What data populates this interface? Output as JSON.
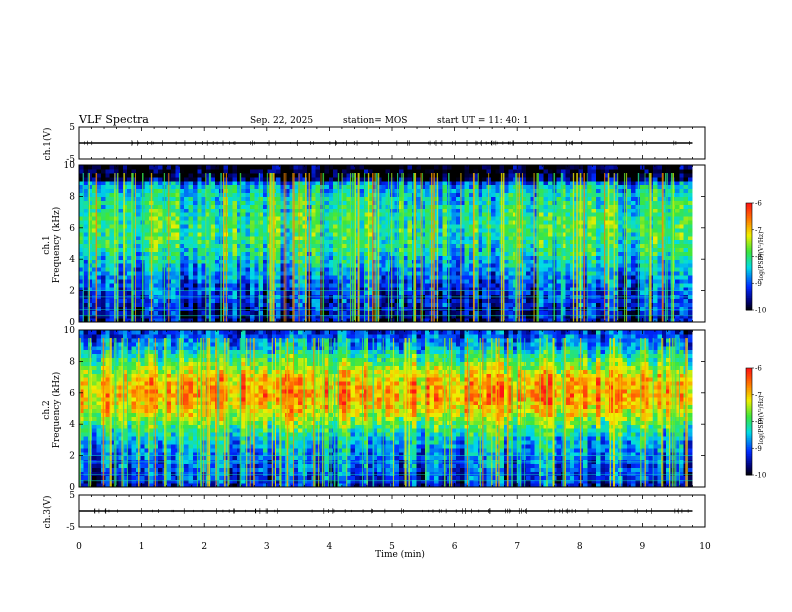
{
  "header": {
    "title": "VLF Spectra",
    "date": "Sep. 22, 2025",
    "station": "station= MOS",
    "start": "start  UT  =   11: 40: 1"
  },
  "chart_data": [
    {
      "type": "line",
      "name_label": "ch.1(V)",
      "ylim": [
        -5,
        5
      ],
      "yticks": [
        "5",
        "-5"
      ],
      "level": 0
    },
    {
      "type": "heatmap",
      "ylabel_top": "ch.1",
      "ylabel": "Frequency (kHz)",
      "ylim": [
        0,
        10
      ],
      "yticks": [
        "0",
        "2",
        "4",
        "6",
        "8",
        "10"
      ],
      "xlim": [
        0,
        10
      ],
      "colorbar": {
        "label": "log(PSD)(V²/Hz)",
        "range": [
          -10,
          -6
        ],
        "ticks": [
          "-6",
          "-7",
          "-8",
          "-9",
          "-10"
        ]
      },
      "profile": [
        {
          "f": 0.0,
          "v": -9.6
        },
        {
          "f": 1.0,
          "v": -9.3
        },
        {
          "f": 2.0,
          "v": -9.1
        },
        {
          "f": 3.0,
          "v": -8.8
        },
        {
          "f": 4.0,
          "v": -8.4
        },
        {
          "f": 5.0,
          "v": -8.1
        },
        {
          "f": 6.0,
          "v": -8.0
        },
        {
          "f": 7.0,
          "v": -8.1
        },
        {
          "f": 8.0,
          "v": -8.3
        },
        {
          "f": 8.8,
          "v": -8.6
        },
        {
          "f": 9.2,
          "v": -10.0
        },
        {
          "f": 10.0,
          "v": -10.0
        }
      ]
    },
    {
      "type": "heatmap",
      "ylabel_top": "ch.2",
      "ylabel": "Frequency (kHz)",
      "ylim": [
        0,
        10
      ],
      "yticks": [
        "0",
        "2",
        "4",
        "6",
        "8",
        "10"
      ],
      "xlim": [
        0,
        10
      ],
      "colorbar": {
        "label": "log(PSD)(V²/Hz)",
        "range": [
          -10,
          -6
        ],
        "ticks": [
          "-6",
          "-7",
          "-8",
          "-9",
          "-10"
        ]
      },
      "profile": [
        {
          "f": 0.0,
          "v": -9.4
        },
        {
          "f": 1.0,
          "v": -9.0
        },
        {
          "f": 2.0,
          "v": -8.8
        },
        {
          "f": 3.0,
          "v": -8.5
        },
        {
          "f": 4.0,
          "v": -7.8
        },
        {
          "f": 5.0,
          "v": -7.0
        },
        {
          "f": 6.0,
          "v": -6.7
        },
        {
          "f": 7.0,
          "v": -7.0
        },
        {
          "f": 8.0,
          "v": -7.8
        },
        {
          "f": 9.0,
          "v": -8.6
        },
        {
          "f": 10.0,
          "v": -9.2
        }
      ]
    },
    {
      "type": "line",
      "name_label": "ch.3(V)",
      "ylim": [
        -5,
        5
      ],
      "yticks": [
        "5",
        "-5"
      ],
      "level": 0
    }
  ],
  "xaxis": {
    "label": "Time (min)",
    "ticks": [
      "0",
      "1",
      "2",
      "3",
      "4",
      "5",
      "6",
      "7",
      "8",
      "9",
      "10"
    ],
    "data_end": 9.8
  }
}
